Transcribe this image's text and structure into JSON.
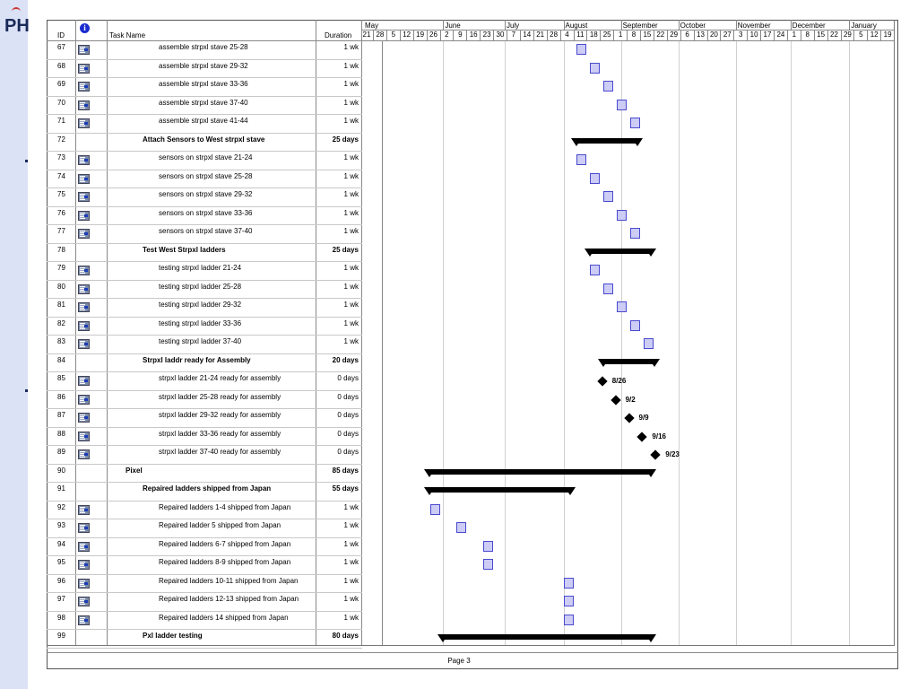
{
  "logo": {
    "text": "PH"
  },
  "table_header": {
    "id_label": "ID",
    "task_name_label": "Task Name",
    "duration_label": "Duration",
    "info_icon": "info-icon"
  },
  "timeline": {
    "months": [
      "May",
      "June",
      "July",
      "August",
      "September",
      "October",
      "November",
      "December",
      "January"
    ],
    "days": [
      "21",
      "28",
      "5",
      "12",
      "19",
      "26",
      "2",
      "9",
      "16",
      "23",
      "30",
      "7",
      "14",
      "21",
      "28",
      "4",
      "11",
      "18",
      "25",
      "1",
      "8",
      "15",
      "22",
      "29",
      "6",
      "13",
      "20",
      "27",
      "3",
      "10",
      "17",
      "24",
      "1",
      "8",
      "15",
      "22",
      "29",
      "5",
      "12",
      "19"
    ]
  },
  "rows": [
    {
      "id": "67",
      "name": "assemble strpxl stave 25-28",
      "duration": "1 wk",
      "level": 2,
      "summary": false,
      "indicator": true
    },
    {
      "id": "68",
      "name": "assemble strpxl stave 29-32",
      "duration": "1 wk",
      "level": 2,
      "summary": false,
      "indicator": true
    },
    {
      "id": "69",
      "name": "assemble strpxl stave 33-36",
      "duration": "1 wk",
      "level": 2,
      "summary": false,
      "indicator": true
    },
    {
      "id": "70",
      "name": "assemble strpxl stave 37-40",
      "duration": "1 wk",
      "level": 2,
      "summary": false,
      "indicator": true
    },
    {
      "id": "71",
      "name": "assemble strpxl stave 41-44",
      "duration": "1 wk",
      "level": 2,
      "summary": false,
      "indicator": true
    },
    {
      "id": "72",
      "name": "Attach Sensors to West strpxl stave",
      "duration": "25 days",
      "level": 1,
      "summary": true,
      "indicator": false
    },
    {
      "id": "73",
      "name": "sensors on strpxl stave 21-24",
      "duration": "1 wk",
      "level": 2,
      "summary": false,
      "indicator": true
    },
    {
      "id": "74",
      "name": "sensors on strpxl stave 25-28",
      "duration": "1 wk",
      "level": 2,
      "summary": false,
      "indicator": true
    },
    {
      "id": "75",
      "name": "sensors on strpxl stave 29-32",
      "duration": "1 wk",
      "level": 2,
      "summary": false,
      "indicator": true
    },
    {
      "id": "76",
      "name": "sensors on strpxl stave 33-36",
      "duration": "1 wk",
      "level": 2,
      "summary": false,
      "indicator": true
    },
    {
      "id": "77",
      "name": "sensors on strpxl stave 37-40",
      "duration": "1 wk",
      "level": 2,
      "summary": false,
      "indicator": true
    },
    {
      "id": "78",
      "name": "Test West Strpxl ladders",
      "duration": "25 days",
      "level": 1,
      "summary": true,
      "indicator": false
    },
    {
      "id": "79",
      "name": "testing strpxl ladder 21-24",
      "duration": "1 wk",
      "level": 2,
      "summary": false,
      "indicator": true
    },
    {
      "id": "80",
      "name": "testing strpxl ladder 25-28",
      "duration": "1 wk",
      "level": 2,
      "summary": false,
      "indicator": true
    },
    {
      "id": "81",
      "name": "testing strpxl ladder 29-32",
      "duration": "1 wk",
      "level": 2,
      "summary": false,
      "indicator": true
    },
    {
      "id": "82",
      "name": "testing strpxl ladder 33-36",
      "duration": "1 wk",
      "level": 2,
      "summary": false,
      "indicator": true
    },
    {
      "id": "83",
      "name": "testing strpxl ladder 37-40",
      "duration": "1 wk",
      "level": 2,
      "summary": false,
      "indicator": true
    },
    {
      "id": "84",
      "name": "Strpxl laddr ready for Assembly",
      "duration": "20 days",
      "level": 1,
      "summary": true,
      "indicator": false
    },
    {
      "id": "85",
      "name": "strpxl ladder 21-24 ready for assembly",
      "duration": "0 days",
      "level": 2,
      "summary": false,
      "indicator": true
    },
    {
      "id": "86",
      "name": "strpxl ladder 25-28 ready for assembly",
      "duration": "0 days",
      "level": 2,
      "summary": false,
      "indicator": true
    },
    {
      "id": "87",
      "name": "strpxl ladder 29-32 ready for assembly",
      "duration": "0 days",
      "level": 2,
      "summary": false,
      "indicator": true
    },
    {
      "id": "88",
      "name": "strpxl ladder 33-36 ready for assembly",
      "duration": "0 days",
      "level": 2,
      "summary": false,
      "indicator": true
    },
    {
      "id": "89",
      "name": "strpxl ladder 37-40 ready for assembly",
      "duration": "0 days",
      "level": 2,
      "summary": false,
      "indicator": true
    },
    {
      "id": "90",
      "name": "Pixel",
      "duration": "85 days",
      "level": 0,
      "summary": true,
      "indicator": false
    },
    {
      "id": "91",
      "name": "Repaired ladders shipped from Japan",
      "duration": "55 days",
      "level": 1,
      "summary": true,
      "indicator": false
    },
    {
      "id": "92",
      "name": "Repaired ladders 1-4 shipped from  Japan",
      "duration": "1 wk",
      "level": 2,
      "summary": false,
      "indicator": true
    },
    {
      "id": "93",
      "name": "Repaired ladder 5 shipped from Japan",
      "duration": "1 wk",
      "level": 2,
      "summary": false,
      "indicator": true
    },
    {
      "id": "94",
      "name": "Repaired ladders 6-7 shipped from Japan",
      "duration": "1 wk",
      "level": 2,
      "summary": false,
      "indicator": true
    },
    {
      "id": "95",
      "name": "Repaired ladders 8-9 shipped from Japan",
      "duration": "1 wk",
      "level": 2,
      "summary": false,
      "indicator": true
    },
    {
      "id": "96",
      "name": "Repaired ladders 10-11 shipped from Japan",
      "duration": "1 wk",
      "level": 2,
      "summary": false,
      "indicator": true
    },
    {
      "id": "97",
      "name": "Repaired ladders 12-13 shipped from Japan",
      "duration": "1 wk",
      "level": 2,
      "summary": false,
      "indicator": true
    },
    {
      "id": "98",
      "name": "Repaired ladders 14 shipped from Japan",
      "duration": "1 wk",
      "level": 2,
      "summary": false,
      "indicator": true
    },
    {
      "id": "99",
      "name": "Pxl ladder testing",
      "duration": "80 days",
      "level": 1,
      "summary": true,
      "indicator": false
    }
  ],
  "gantt": {
    "tasks": [
      {
        "row": 0,
        "type": "task",
        "start_week": 16
      },
      {
        "row": 1,
        "type": "task",
        "start_week": 17
      },
      {
        "row": 2,
        "type": "task",
        "start_week": 18
      },
      {
        "row": 3,
        "type": "task",
        "start_week": 19
      },
      {
        "row": 4,
        "type": "task",
        "start_week": 20
      },
      {
        "row": 5,
        "type": "summary",
        "start_week": 15.9,
        "end_week": 20.6
      },
      {
        "row": 6,
        "type": "task",
        "start_week": 16
      },
      {
        "row": 7,
        "type": "task",
        "start_week": 17
      },
      {
        "row": 8,
        "type": "task",
        "start_week": 18
      },
      {
        "row": 9,
        "type": "task",
        "start_week": 19
      },
      {
        "row": 10,
        "type": "task",
        "start_week": 20
      },
      {
        "row": 11,
        "type": "summary",
        "start_week": 16.9,
        "end_week": 21.6
      },
      {
        "row": 12,
        "type": "task",
        "start_week": 17
      },
      {
        "row": 13,
        "type": "task",
        "start_week": 18
      },
      {
        "row": 14,
        "type": "task",
        "start_week": 19
      },
      {
        "row": 15,
        "type": "task",
        "start_week": 20
      },
      {
        "row": 16,
        "type": "task",
        "start_week": 21
      },
      {
        "row": 17,
        "type": "summary",
        "start_week": 17.9,
        "end_week": 21.9
      },
      {
        "row": 18,
        "type": "milestone",
        "week": 17.9,
        "label": "8/26"
      },
      {
        "row": 19,
        "type": "milestone",
        "week": 18.9,
        "label": "9/2"
      },
      {
        "row": 20,
        "type": "milestone",
        "week": 19.9,
        "label": "9/9"
      },
      {
        "row": 21,
        "type": "milestone",
        "week": 20.9,
        "label": "9/16"
      },
      {
        "row": 22,
        "type": "milestone",
        "week": 21.9,
        "label": "9/23"
      },
      {
        "row": 23,
        "type": "summary",
        "start_week": 4.9,
        "end_week": 21.6
      },
      {
        "row": 24,
        "type": "summary",
        "start_week": 4.9,
        "end_week": 15.6
      },
      {
        "row": 25,
        "type": "task",
        "start_week": 5
      },
      {
        "row": 26,
        "type": "task",
        "start_week": 7
      },
      {
        "row": 27,
        "type": "task",
        "start_week": 9
      },
      {
        "row": 28,
        "type": "task",
        "start_week": 9
      },
      {
        "row": 29,
        "type": "task",
        "start_week": 15
      },
      {
        "row": 30,
        "type": "task",
        "start_week": 15
      },
      {
        "row": 31,
        "type": "task",
        "start_week": 15
      },
      {
        "row": 32,
        "type": "summary",
        "start_week": 5.9,
        "end_week": 21.6
      }
    ]
  },
  "footer": {
    "page_label": "Page 3"
  }
}
